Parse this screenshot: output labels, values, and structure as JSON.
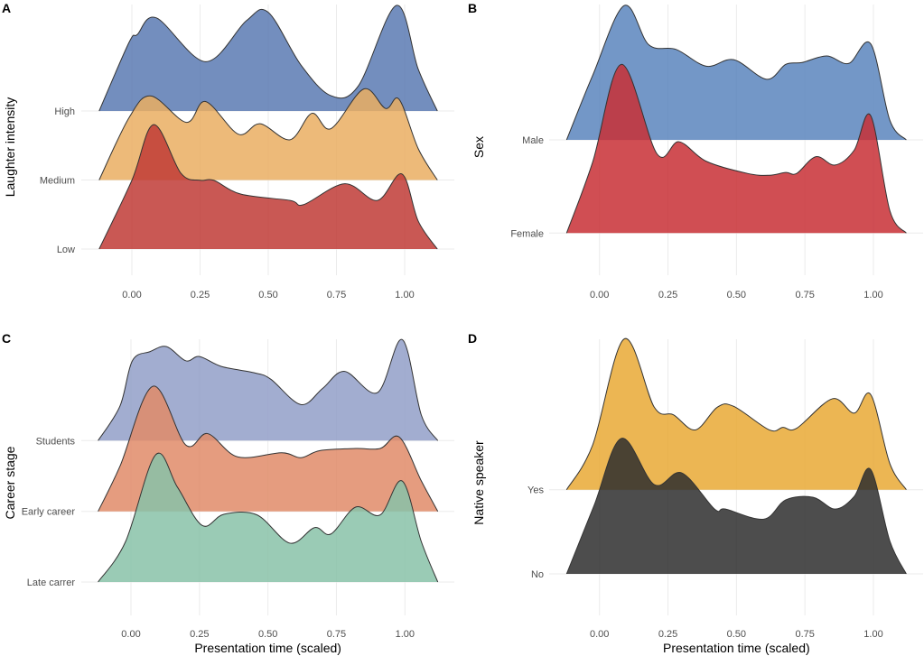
{
  "chart_data": [
    {
      "panel": "A",
      "type": "area",
      "subtype": "ridgeline",
      "xlabel": "",
      "ylabel": "Laughter intensity",
      "xlim": [
        -0.12,
        1.12
      ],
      "xticks": [
        "0.00",
        "0.25",
        "0.50",
        "0.75",
        "1.00"
      ],
      "categories": [
        "High",
        "Medium",
        "Low"
      ],
      "series": [
        {
          "name": "High",
          "color": "#5b7ab3",
          "points": [
            [
              -0.12,
              0
            ],
            [
              -0.01,
              0.99
            ],
            [
              0.02,
              1.1
            ],
            [
              0.09,
              1.34
            ],
            [
              0.27,
              0.71
            ],
            [
              0.42,
              1.3
            ],
            [
              0.5,
              1.42
            ],
            [
              0.62,
              0.66
            ],
            [
              0.73,
              0.22
            ],
            [
              0.83,
              0.36
            ],
            [
              0.97,
              1.52
            ],
            [
              1.05,
              0.6
            ],
            [
              1.12,
              0
            ]
          ]
        },
        {
          "name": "Medium",
          "color": "#eaae62",
          "points": [
            [
              -0.12,
              0
            ],
            [
              -0.01,
              0.9
            ],
            [
              0.07,
              1.21
            ],
            [
              0.2,
              0.83
            ],
            [
              0.27,
              1.13
            ],
            [
              0.39,
              0.66
            ],
            [
              0.47,
              0.81
            ],
            [
              0.58,
              0.58
            ],
            [
              0.66,
              0.96
            ],
            [
              0.73,
              0.74
            ],
            [
              0.85,
              1.31
            ],
            [
              0.93,
              1.03
            ],
            [
              0.98,
              1.16
            ],
            [
              1.05,
              0.45
            ],
            [
              1.12,
              0
            ]
          ]
        },
        {
          "name": "Low",
          "color": "#bf3b36",
          "points": [
            [
              -0.12,
              0
            ],
            [
              0.0,
              0.99
            ],
            [
              0.08,
              1.79
            ],
            [
              0.18,
              1.09
            ],
            [
              0.25,
              0.99
            ],
            [
              0.3,
              0.99
            ],
            [
              0.4,
              0.79
            ],
            [
              0.58,
              0.7
            ],
            [
              0.63,
              0.64
            ],
            [
              0.78,
              0.94
            ],
            [
              0.9,
              0.7
            ],
            [
              0.99,
              1.08
            ],
            [
              1.05,
              0.4
            ],
            [
              1.12,
              0
            ]
          ]
        }
      ]
    },
    {
      "panel": "B",
      "type": "area",
      "subtype": "ridgeline",
      "xlabel": "",
      "ylabel": "Sex",
      "xlim": [
        -0.12,
        1.12
      ],
      "xticks": [
        "0.00",
        "0.25",
        "0.50",
        "0.75",
        "1.00"
      ],
      "categories": [
        "Male",
        "Female"
      ],
      "series": [
        {
          "name": "Male",
          "color": "#5a85bd",
          "points": [
            [
              -0.12,
              0
            ],
            [
              -0.025,
              0.69
            ],
            [
              0.09,
              1.44
            ],
            [
              0.18,
              1.02
            ],
            [
              0.28,
              0.97
            ],
            [
              0.39,
              0.79
            ],
            [
              0.49,
              0.86
            ],
            [
              0.61,
              0.65
            ],
            [
              0.68,
              0.81
            ],
            [
              0.74,
              0.83
            ],
            [
              0.83,
              0.9
            ],
            [
              0.91,
              0.82
            ],
            [
              0.99,
              1.03
            ],
            [
              1.06,
              0.21
            ],
            [
              1.12,
              0
            ]
          ]
        },
        {
          "name": "Female",
          "color": "#c82f35",
          "points": [
            [
              -0.12,
              0
            ],
            [
              -0.025,
              0.76
            ],
            [
              0.08,
              1.81
            ],
            [
              0.21,
              0.85
            ],
            [
              0.29,
              0.98
            ],
            [
              0.39,
              0.77
            ],
            [
              0.54,
              0.64
            ],
            [
              0.62,
              0.62
            ],
            [
              0.68,
              0.65
            ],
            [
              0.72,
              0.64
            ],
            [
              0.79,
              0.82
            ],
            [
              0.86,
              0.73
            ],
            [
              0.93,
              0.89
            ],
            [
              0.99,
              1.26
            ],
            [
              1.06,
              0.24
            ],
            [
              1.12,
              0
            ]
          ]
        }
      ]
    },
    {
      "panel": "C",
      "type": "area",
      "subtype": "ridgeline",
      "xlabel": "Presentation time (scaled)",
      "ylabel": "Career stage",
      "xlim": [
        -0.12,
        1.12
      ],
      "xticks": [
        "0.00",
        "0.25",
        "0.50",
        "0.75",
        "1.00"
      ],
      "categories": [
        "Students",
        "Early career",
        "Late carrer"
      ],
      "series": [
        {
          "name": "Students",
          "color": "#929fc8",
          "points": [
            [
              -0.12,
              0
            ],
            [
              -0.04,
              0.49
            ],
            [
              0.005,
              1.13
            ],
            [
              0.07,
              1.26
            ],
            [
              0.13,
              1.33
            ],
            [
              0.2,
              1.13
            ],
            [
              0.25,
              1.19
            ],
            [
              0.33,
              1.05
            ],
            [
              0.45,
              0.96
            ],
            [
              0.51,
              0.87
            ],
            [
              0.62,
              0.51
            ],
            [
              0.7,
              0.74
            ],
            [
              0.78,
              0.98
            ],
            [
              0.9,
              0.68
            ],
            [
              0.99,
              1.43
            ],
            [
              1.06,
              0.36
            ],
            [
              1.12,
              0
            ]
          ]
        },
        {
          "name": "Early career",
          "color": "#e18b69",
          "points": [
            [
              -0.12,
              0
            ],
            [
              -0.04,
              0.64
            ],
            [
              0.08,
              1.77
            ],
            [
              0.2,
              0.94
            ],
            [
              0.28,
              1.1
            ],
            [
              0.39,
              0.77
            ],
            [
              0.55,
              0.83
            ],
            [
              0.62,
              0.76
            ],
            [
              0.69,
              0.86
            ],
            [
              0.82,
              0.89
            ],
            [
              0.91,
              0.89
            ],
            [
              0.98,
              1.05
            ],
            [
              1.06,
              0.43
            ],
            [
              1.12,
              0
            ]
          ]
        },
        {
          "name": "Late carrer",
          "color": "#88c2a8",
          "points": [
            [
              -0.12,
              0
            ],
            [
              -0.02,
              0.57
            ],
            [
              0.09,
              1.8
            ],
            [
              0.17,
              1.34
            ],
            [
              0.26,
              0.8
            ],
            [
              0.34,
              0.96
            ],
            [
              0.46,
              0.95
            ],
            [
              0.58,
              0.55
            ],
            [
              0.67,
              0.77
            ],
            [
              0.73,
              0.68
            ],
            [
              0.82,
              1.06
            ],
            [
              0.91,
              0.95
            ],
            [
              0.99,
              1.43
            ],
            [
              1.06,
              0.57
            ],
            [
              1.12,
              0
            ]
          ]
        }
      ]
    },
    {
      "panel": "D",
      "type": "area",
      "subtype": "ridgeline",
      "xlabel": "Presentation time (scaled)",
      "ylabel": "Native speaker",
      "xlim": [
        -0.12,
        1.12
      ],
      "xticks": [
        "0.00",
        "0.25",
        "0.50",
        "0.75",
        "1.00"
      ],
      "categories": [
        "Yes",
        "No"
      ],
      "series": [
        {
          "name": "Yes",
          "color": "#e9a935",
          "points": [
            [
              -0.12,
              0
            ],
            [
              -0.025,
              0.53
            ],
            [
              0.09,
              1.79
            ],
            [
              0.2,
              0.98
            ],
            [
              0.27,
              0.89
            ],
            [
              0.35,
              0.71
            ],
            [
              0.43,
              0.98
            ],
            [
              0.49,
              0.99
            ],
            [
              0.62,
              0.71
            ],
            [
              0.67,
              0.74
            ],
            [
              0.72,
              0.73
            ],
            [
              0.85,
              1.08
            ],
            [
              0.93,
              0.91
            ],
            [
              0.99,
              1.13
            ],
            [
              1.06,
              0.31
            ],
            [
              1.12,
              0
            ]
          ]
        },
        {
          "name": "No",
          "color": "#2e2e2e",
          "points": [
            [
              -0.12,
              0
            ],
            [
              -0.02,
              0.81
            ],
            [
              0.08,
              1.61
            ],
            [
              0.2,
              1.06
            ],
            [
              0.3,
              1.2
            ],
            [
              0.42,
              0.77
            ],
            [
              0.46,
              0.77
            ],
            [
              0.6,
              0.65
            ],
            [
              0.68,
              0.88
            ],
            [
              0.78,
              0.91
            ],
            [
              0.86,
              0.77
            ],
            [
              0.93,
              0.92
            ],
            [
              0.99,
              1.24
            ],
            [
              1.06,
              0.39
            ],
            [
              1.12,
              0
            ]
          ]
        }
      ]
    }
  ]
}
